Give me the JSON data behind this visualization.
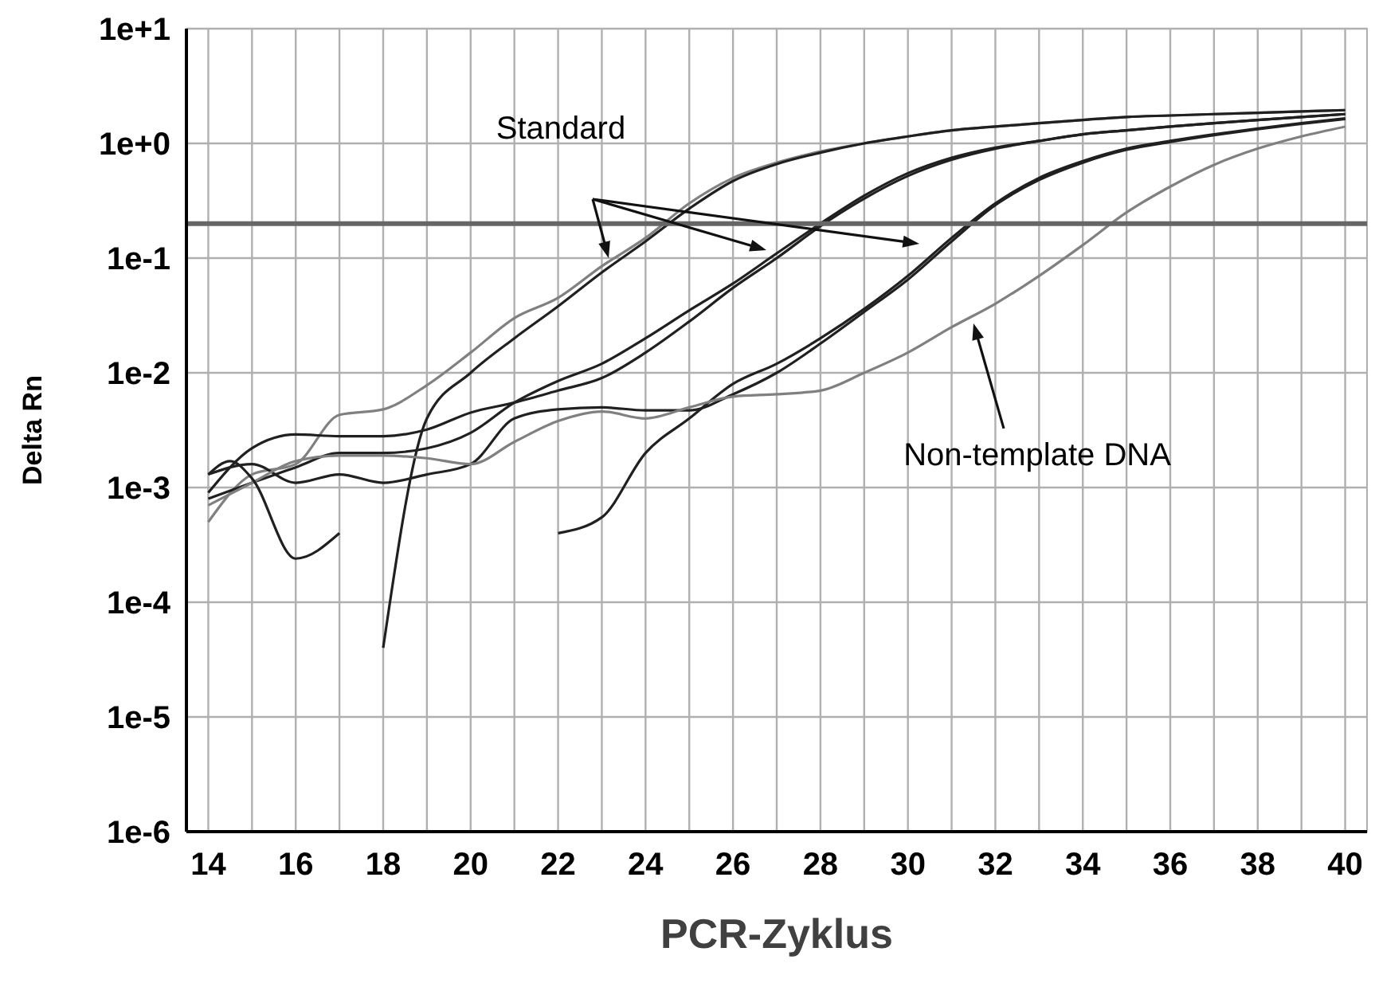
{
  "chart_data": {
    "type": "line",
    "xlabel": "PCR-Zyklus",
    "ylabel": "Delta Rn",
    "log": "y",
    "grid": true,
    "line_style": "solid",
    "marker": "none",
    "xlim": [
      13.5,
      40.5
    ],
    "xticks": [
      14,
      {
        "value": 15,
        "label": null
      },
      16,
      {
        "value": 17,
        "label": null
      },
      18,
      {
        "value": 19,
        "label": null
      },
      20,
      {
        "value": 21,
        "label": null
      },
      22,
      {
        "value": 23,
        "label": null
      },
      24,
      {
        "value": 25,
        "label": null
      },
      26,
      {
        "value": 27,
        "label": null
      },
      28,
      {
        "value": 29,
        "label": null
      },
      30,
      {
        "value": 31,
        "label": null
      },
      32,
      {
        "value": 33,
        "label": null
      },
      34,
      {
        "value": 35,
        "label": null
      },
      36,
      {
        "value": 37,
        "label": null
      },
      38,
      {
        "value": 39,
        "label": null
      },
      40
    ],
    "ylim": [
      1e-06,
      10
    ],
    "yticks": [
      {
        "value": 1e-06,
        "label": "1e-6"
      },
      {
        "value": 1e-05,
        "label": "1e-5"
      },
      {
        "value": 0.0001,
        "label": "1e-4"
      },
      {
        "value": 0.001,
        "label": "1e-3"
      },
      {
        "value": 0.01,
        "label": "1e-2"
      },
      {
        "value": 0.1,
        "label": "1e-1"
      },
      {
        "value": 1,
        "label": "1e+0"
      },
      {
        "value": 10,
        "label": "1e+1"
      }
    ],
    "series": [
      {
        "color": "#808080",
        "x": [
          14,
          15,
          16,
          17,
          18,
          19,
          20,
          21,
          22,
          23,
          24,
          25,
          26,
          27,
          28,
          29,
          30,
          31,
          32,
          33,
          34,
          35,
          36,
          37,
          38,
          39,
          40
        ],
        "values": [
          0.0005,
          0.0013,
          0.0016,
          0.0043,
          0.0048,
          0.0078,
          0.015,
          0.03,
          0.045,
          0.085,
          0.15,
          0.3,
          0.5,
          0.68,
          0.85,
          1.0,
          1.15,
          1.3,
          1.4,
          1.5,
          1.6,
          1.7,
          1.75,
          1.8,
          1.85,
          1.9,
          1.95
        ]
      },
      {
        "color": "#202020",
        "x": [
          18,
          19,
          20,
          21,
          22,
          23,
          24,
          25,
          26,
          27,
          28,
          29,
          30,
          31,
          32,
          33,
          34,
          35,
          36,
          37,
          38,
          39,
          40
        ],
        "values": [
          4e-05,
          0.004,
          0.01,
          0.02,
          0.038,
          0.075,
          0.14,
          0.27,
          0.47,
          0.66,
          0.83,
          1.0,
          1.15,
          1.3,
          1.4,
          1.5,
          1.6,
          1.7,
          1.75,
          1.8,
          1.85,
          1.9,
          1.95
        ]
      },
      {
        "color": "#202020",
        "x": [
          14,
          15,
          16,
          17,
          18,
          19,
          20,
          21,
          22,
          23,
          24,
          25,
          26,
          27,
          28,
          29,
          30,
          31,
          32,
          33,
          34,
          35,
          36,
          37,
          38,
          39,
          40
        ],
        "values": [
          0.0008,
          0.0011,
          0.0015,
          0.002,
          0.002,
          0.0022,
          0.003,
          0.0055,
          0.0085,
          0.012,
          0.02,
          0.035,
          0.06,
          0.11,
          0.2,
          0.35,
          0.55,
          0.75,
          0.92,
          1.05,
          1.2,
          1.3,
          1.4,
          1.5,
          1.6,
          1.7,
          1.8
        ]
      },
      {
        "color": "#202020",
        "x": [
          14,
          15,
          16,
          17,
          18,
          19,
          20,
          21,
          22,
          23,
          24,
          25,
          26,
          27,
          28,
          29,
          30,
          31,
          32,
          33,
          34,
          35,
          36,
          37,
          38,
          39,
          40
        ],
        "values": [
          0.0009,
          0.0022,
          0.0029,
          0.0028,
          0.0028,
          0.0032,
          0.0045,
          0.0055,
          0.007,
          0.009,
          0.015,
          0.028,
          0.055,
          0.1,
          0.19,
          0.33,
          0.52,
          0.72,
          0.9,
          1.05,
          1.2,
          1.3,
          1.4,
          1.5,
          1.6,
          1.7,
          1.8
        ]
      },
      {
        "color": "#202020",
        "x": [
          22,
          23,
          24,
          25,
          26,
          27,
          28,
          29,
          30,
          31,
          32,
          33,
          34,
          35,
          36,
          37,
          38,
          39,
          40
        ],
        "values": [
          0.0004,
          0.00055,
          0.002,
          0.004,
          0.008,
          0.012,
          0.02,
          0.036,
          0.07,
          0.15,
          0.3,
          0.5,
          0.7,
          0.9,
          1.05,
          1.2,
          1.35,
          1.5,
          1.65
        ]
      },
      {
        "color": "#202020",
        "x": [
          14,
          15,
          16,
          17,
          18,
          19,
          20,
          21,
          22,
          23,
          24,
          25,
          26,
          27,
          28,
          29,
          30,
          31,
          32,
          33,
          34,
          35,
          36,
          37,
          38,
          39,
          40
        ],
        "values": [
          0.0013,
          0.0016,
          0.0011,
          0.0013,
          0.0011,
          0.0013,
          0.0016,
          0.004,
          0.0048,
          0.005,
          0.0047,
          0.0047,
          0.0065,
          0.01,
          0.018,
          0.034,
          0.065,
          0.14,
          0.29,
          0.48,
          0.68,
          0.88,
          1.03,
          1.18,
          1.33,
          1.48,
          1.63
        ]
      },
      {
        "color": "#808080",
        "x": [
          14,
          15,
          16,
          17,
          18,
          19,
          20,
          21,
          22,
          23,
          24,
          25,
          26,
          27,
          28,
          29,
          30,
          31,
          32,
          33,
          34,
          35,
          36,
          37,
          38,
          39,
          40
        ],
        "values": [
          0.0007,
          0.0011,
          0.0017,
          0.0019,
          0.0019,
          0.0018,
          0.0016,
          0.0025,
          0.0038,
          0.0046,
          0.004,
          0.005,
          0.0062,
          0.0065,
          0.007,
          0.01,
          0.015,
          0.025,
          0.04,
          0.07,
          0.13,
          0.25,
          0.42,
          0.65,
          0.9,
          1.15,
          1.4
        ]
      },
      {
        "color": "#202020",
        "x": [
          14,
          14.5,
          15,
          16,
          17
        ],
        "values": [
          0.0013,
          0.0017,
          0.0012,
          0.00024,
          0.0004
        ]
      }
    ],
    "ref_lines": [
      {
        "axis": "y",
        "value": 0.2,
        "color": "#666666"
      }
    ],
    "annotations": [
      "Standard",
      {
        "text": "Non-template DNA",
        "x": 31.5,
        "y": 0.027
      }
    ]
  }
}
